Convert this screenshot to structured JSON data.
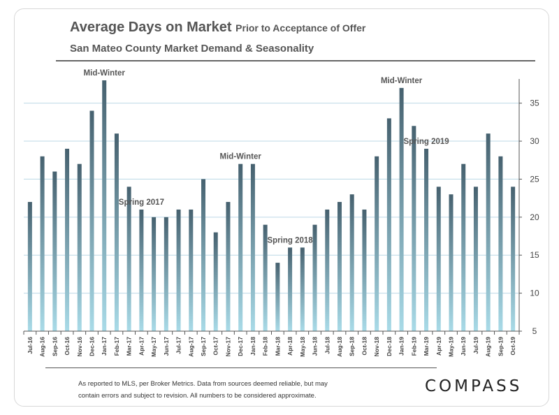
{
  "header": {
    "title": "Average Days on Market",
    "title_suffix": "Prior to Acceptance of Offer",
    "subtitle": "San Mateo County Market Demand & Seasonality"
  },
  "footer": {
    "note_line1": "As reported to MLS, per Broker Metrics. Data from sources deemed reliable, but may",
    "note_line2": "contain errors and subject to revision.  All numbers to be considered approximate.",
    "brand": "COMPASS"
  },
  "chart_data": {
    "type": "bar",
    "categories": [
      "Jul-16",
      "Aug-16",
      "Sep-16",
      "Oct-16",
      "Nov-16",
      "Dec-16",
      "Jan-17",
      "Feb-17",
      "Mar-17",
      "Apr-17",
      "May-17",
      "Jun-17",
      "Jul-17",
      "Aug-17",
      "Sep-17",
      "Oct-17",
      "Nov-17",
      "Dec-17",
      "Jan-18",
      "Feb-18",
      "Mar-18",
      "Apr-18",
      "May-18",
      "Jun-18",
      "Jul-18",
      "Aug-18",
      "Sep-18",
      "Oct-18",
      "Nov-18",
      "Dec-18",
      "Jan-19",
      "Feb-19",
      "Mar-19",
      "Apr-19",
      "May-19",
      "Jun-19",
      "Jul-19",
      "Aug-19",
      "Sep-19",
      "Oct-19"
    ],
    "values": [
      22,
      28,
      26,
      29,
      27,
      34,
      38,
      31,
      24,
      21,
      20,
      20,
      21,
      21,
      25,
      18,
      22,
      27,
      27,
      19,
      14,
      16,
      16,
      19,
      21,
      22,
      23,
      21,
      28,
      33,
      37,
      32,
      29,
      24,
      23,
      27,
      24,
      31,
      28,
      24
    ],
    "ylim": [
      5,
      38
    ],
    "yticks": [
      5,
      10,
      15,
      20,
      25,
      30,
      35
    ],
    "y_axis_side": "right",
    "grid": true,
    "annotations": [
      {
        "text": "Mid-Winter",
        "category": "Jan-17"
      },
      {
        "text": "Spring 2017",
        "category": "Apr-17"
      },
      {
        "text": "Mid-Winter",
        "category": "Dec-17"
      },
      {
        "text": "Spring 2018",
        "category": "Apr-18"
      },
      {
        "text": "Mid-Winter",
        "category": "Jan-19"
      },
      {
        "text": "Spring 2019",
        "category": "Mar-19"
      }
    ],
    "colors": {
      "bar_top": "#46616f",
      "bar_bottom": "#a9dbe8",
      "grid": "#bcd8e6",
      "text": "#555555"
    }
  }
}
